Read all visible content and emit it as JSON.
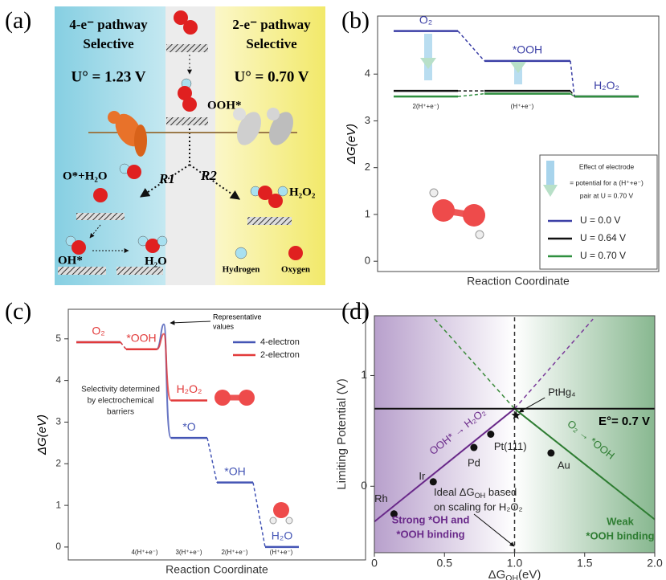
{
  "diagram": {
    "label": "(a)",
    "left": {
      "title": "4-e⁻ pathway",
      "subtitle": "Selective",
      "potential": "U° = 1.23 V"
    },
    "right": {
      "title": "2-e⁻ pathway",
      "subtitle": "Selective",
      "potential": "U° = 0.70 V"
    },
    "labels": {
      "ooh": "OOH*",
      "r1": "R1",
      "r2": "R2",
      "o_h2o": "O*+H₂O",
      "h2o2": "H₂O₂",
      "oh": "OH*",
      "h2o": "H₂O"
    },
    "legend": [
      "Hydrogen",
      "Oxygen"
    ]
  },
  "chart_data": [
    {
      "label": "(b)",
      "type": "step",
      "ylabel": "ΔG(eV)",
      "xlabel": "Reaction Coordinate",
      "ylim": [
        -0.22,
        5.24
      ],
      "yticks": [
        0,
        1,
        2,
        3,
        4
      ],
      "series": [
        {
          "name": "U = 0.0 V",
          "color": "#3b3fa6",
          "values": [
            4.92,
            4.28,
            3.52
          ],
          "labels": [
            "O₂",
            "*OOH",
            "H₂O₂"
          ]
        },
        {
          "name": "U = 0.64 V",
          "color": "#111111",
          "values": [
            3.64,
            3.64,
            3.52
          ]
        },
        {
          "name": "U = 0.70 V",
          "color": "#2f8f3f",
          "values": [
            3.52,
            3.58,
            3.52
          ]
        }
      ],
      "step_labels": [
        "2(H⁺+e⁻)",
        "(H⁺+e⁻)"
      ],
      "note": [
        "Effect of electrode",
        "= potential for a (H⁺+e⁻)",
        "pair at U = 0.70 V"
      ]
    },
    {
      "label": "(c)",
      "type": "step",
      "ylabel": "ΔG(eV)",
      "xlabel": "Reaction Coordinate",
      "ylim": [
        -0.31,
        5.71
      ],
      "yticks": [
        0,
        1,
        2,
        3,
        4,
        5
      ],
      "series": [
        {
          "name": "4-electron",
          "color": "#4455b5",
          "values": [
            4.92,
            4.75,
            2.62,
            1.55,
            0
          ],
          "labels": [
            null,
            null,
            "*O",
            "*OH",
            "H₂O"
          ],
          "peak": 5.35
        },
        {
          "name": "2-electron",
          "color": "#e23a3a",
          "values": [
            4.92,
            4.75,
            3.52,
            null,
            null
          ],
          "labels": [
            "O₂",
            "*OOH",
            "H₂O₂",
            null,
            null
          ],
          "peak": 5.12
        }
      ],
      "step_labels": [
        "4(H⁺+e⁻)",
        "3(H⁺+e⁻)",
        "2(H⁺+e⁻)",
        "(H⁺+e⁻)"
      ],
      "annotations": [
        "Representative",
        "values",
        "Selectivity determined",
        "by electrochemical",
        "barriers"
      ]
    },
    {
      "label": "(d)",
      "type": "scatter",
      "ylabel": "Limiting Potential (V)",
      "xlabel": [
        "ΔG",
        "OH",
        "(eV)"
      ],
      "xlim": [
        0,
        2
      ],
      "ylim": [
        -0.6,
        1.54
      ],
      "xticks": [
        0,
        0.5,
        {
          "value": 1,
          "label": "1.0"
        },
        1.5,
        {
          "value": 2,
          "label": "2.0"
        }
      ],
      "yticks": [
        0,
        1
      ],
      "series": [
        {
          "color": "#6a2a8a",
          "dash": false,
          "x": [
            0,
            1
          ],
          "y": [
            -0.32,
            0.7
          ]
        },
        {
          "color": "#7a3a9a",
          "dash": true,
          "x": [
            1,
            1.56
          ],
          "y": [
            0.7,
            1.51
          ]
        },
        {
          "color": "#2e7d32",
          "dash": false,
          "x": [
            1,
            2
          ],
          "y": [
            0.7,
            -0.3
          ]
        },
        {
          "color": "#3a8a3a",
          "dash": true,
          "x": [
            0.43,
            1
          ],
          "y": [
            1.51,
            0.7
          ]
        },
        {
          "color": "#111111",
          "dash": false,
          "x": [
            0,
            2
          ],
          "y": [
            0.7,
            0.7
          ]
        },
        {
          "color": "#333333",
          "dash": true,
          "x": [
            1,
            1
          ],
          "y": [
            -0.6,
            1.54
          ]
        }
      ],
      "points": [
        {
          "name": "Rh",
          "x": 0.14,
          "y": -0.25
        },
        {
          "name": "Ir",
          "x": 0.42,
          "y": 0.04
        },
        {
          "name": "Pd",
          "x": 0.71,
          "y": 0.35
        },
        {
          "name": "Pt(111)",
          "x": 0.83,
          "y": 0.47
        },
        {
          "name": "Au",
          "x": 1.26,
          "y": 0.3
        },
        {
          "name": "PtHg₄",
          "x": 1.01,
          "y": 0.64,
          "marker": "star"
        }
      ],
      "annotations": {
        "e0": "E°= 0.7 V",
        "purple_line": "OOH* → H₂O₂",
        "green_line": "O₂ → *OOH",
        "strong": [
          "Strong *OH and",
          "*OOH binding"
        ],
        "weak": [
          "Weak",
          "*OOH binding"
        ],
        "ideal": [
          "Ideal ΔG",
          "OH",
          " based",
          "on scaling for H₂O₂"
        ]
      }
    }
  ]
}
